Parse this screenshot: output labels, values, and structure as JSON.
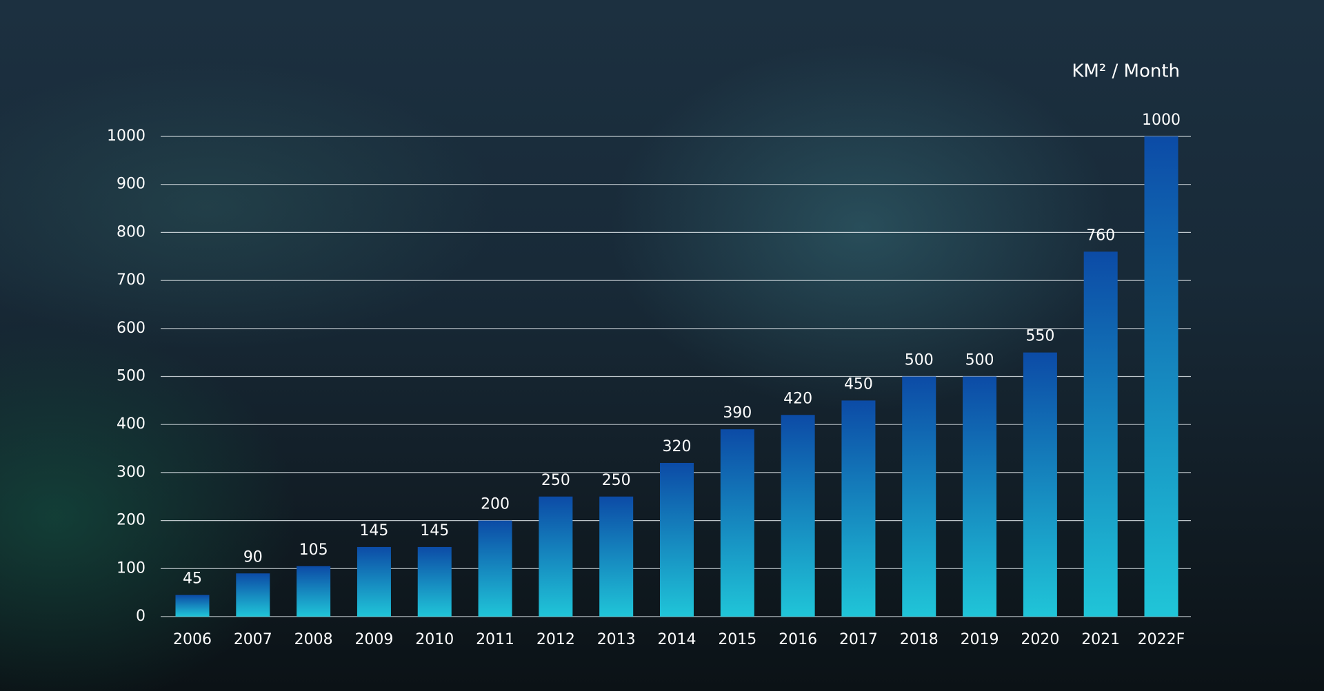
{
  "chart_data": {
    "type": "bar",
    "ylabel": "KM² / Month",
    "categories": [
      "2006",
      "2007",
      "2008",
      "2009",
      "2010",
      "2011",
      "2012",
      "2013",
      "2014",
      "2015",
      "2016",
      "2017",
      "2018",
      "2019",
      "2020",
      "2021",
      "2022F"
    ],
    "values": [
      45,
      90,
      105,
      145,
      145,
      200,
      250,
      250,
      320,
      390,
      420,
      450,
      500,
      500,
      550,
      760,
      1000
    ],
    "color": "#0c4ba6",
    "color_bottom": "#20c5d8",
    "ylim": [
      0,
      1000
    ],
    "yticks": [
      0,
      100,
      200,
      300,
      400,
      500,
      600,
      700,
      800,
      900,
      1000
    ],
    "grid": true
  }
}
